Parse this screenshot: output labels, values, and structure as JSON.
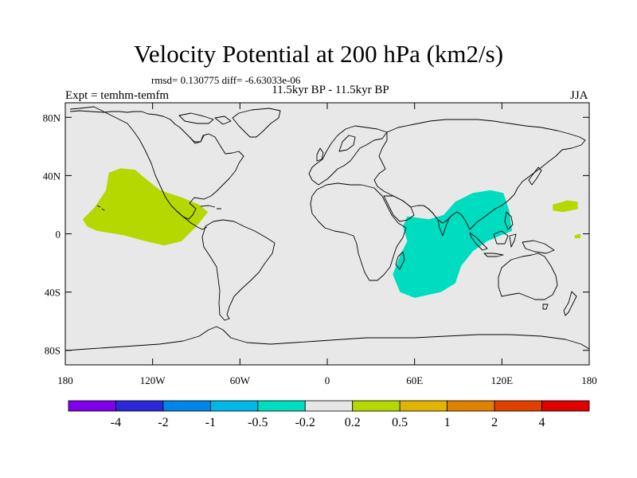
{
  "title": "Velocity Potential at 200 hPa (km2/s)",
  "stats": "rmsd= 0.130775 diff= -6.63033e-06",
  "left_label": "Expt = temhm-temfm",
  "center_label": "11.5kyr BP - 11.5kyr BP",
  "right_label": "JJA",
  "map": {
    "background": "#e8e8e8",
    "lat_ticks": [
      {
        "value": 80,
        "label": "80N"
      },
      {
        "value": 40,
        "label": "40N"
      },
      {
        "value": 0,
        "label": "0"
      },
      {
        "value": -40,
        "label": "40S"
      },
      {
        "value": -80,
        "label": "80S"
      }
    ],
    "lon_ticks": [
      {
        "value": -180,
        "label": "180"
      },
      {
        "value": -120,
        "label": "120W"
      },
      {
        "value": -60,
        "label": "60W"
      },
      {
        "value": 0,
        "label": "0"
      },
      {
        "value": 60,
        "label": "60E"
      },
      {
        "value": 120,
        "label": "120E"
      },
      {
        "value": 180,
        "label": "180"
      }
    ],
    "anomalies": [
      {
        "name": "east-pacific-positive",
        "color": "#b4d800",
        "lonlat": [
          [
            -150,
            42
          ],
          [
            -142,
            45
          ],
          [
            -132,
            44
          ],
          [
            -125,
            38
          ],
          [
            -115,
            30
          ],
          [
            -100,
            25
          ],
          [
            -88,
            20
          ],
          [
            -82,
            15
          ],
          [
            -90,
            5
          ],
          [
            -100,
            -5
          ],
          [
            -112,
            -8
          ],
          [
            -125,
            -5
          ],
          [
            -140,
            -1
          ],
          [
            -158,
            2
          ],
          [
            -165,
            5
          ],
          [
            -168,
            10
          ],
          [
            -160,
            18
          ],
          [
            -152,
            30
          ]
        ]
      },
      {
        "name": "west-pacific-positive",
        "color": "#b4d800",
        "lonlat": [
          [
            155,
            20
          ],
          [
            165,
            23
          ],
          [
            172,
            22
          ],
          [
            172,
            17
          ],
          [
            162,
            15
          ],
          [
            155,
            16
          ]
        ]
      },
      {
        "name": "west-pacific-small-positive",
        "color": "#b4d800",
        "lonlat": [
          [
            170,
            -1
          ],
          [
            174,
            0
          ],
          [
            174,
            -3
          ],
          [
            170,
            -3
          ]
        ]
      },
      {
        "name": "indo-asia-negative",
        "color": "#00dcc0",
        "lonlat": [
          [
            55,
            12
          ],
          [
            70,
            10
          ],
          [
            80,
            13
          ],
          [
            88,
            22
          ],
          [
            100,
            28
          ],
          [
            112,
            30
          ],
          [
            121,
            28
          ],
          [
            125,
            16
          ],
          [
            127,
            2
          ],
          [
            117,
            -2
          ],
          [
            110,
            -5
          ],
          [
            100,
            -12
          ],
          [
            92,
            -22
          ],
          [
            88,
            -34
          ],
          [
            78,
            -40
          ],
          [
            60,
            -44
          ],
          [
            50,
            -40
          ],
          [
            45,
            -28
          ],
          [
            50,
            -15
          ],
          [
            55,
            -5
          ],
          [
            52,
            5
          ]
        ]
      }
    ]
  },
  "colorbar": {
    "colors": [
      "#8000ee",
      "#2a28d8",
      "#0086e8",
      "#00b8e6",
      "#00dcc0",
      "#e6e6e6",
      "#b4d800",
      "#e0b400",
      "#e08000",
      "#e04000",
      "#e00000"
    ],
    "labels": [
      "-4",
      "-2",
      "-1",
      "-0.5",
      "-0.2",
      "0.2",
      "0.5",
      "1",
      "2",
      "4"
    ]
  }
}
